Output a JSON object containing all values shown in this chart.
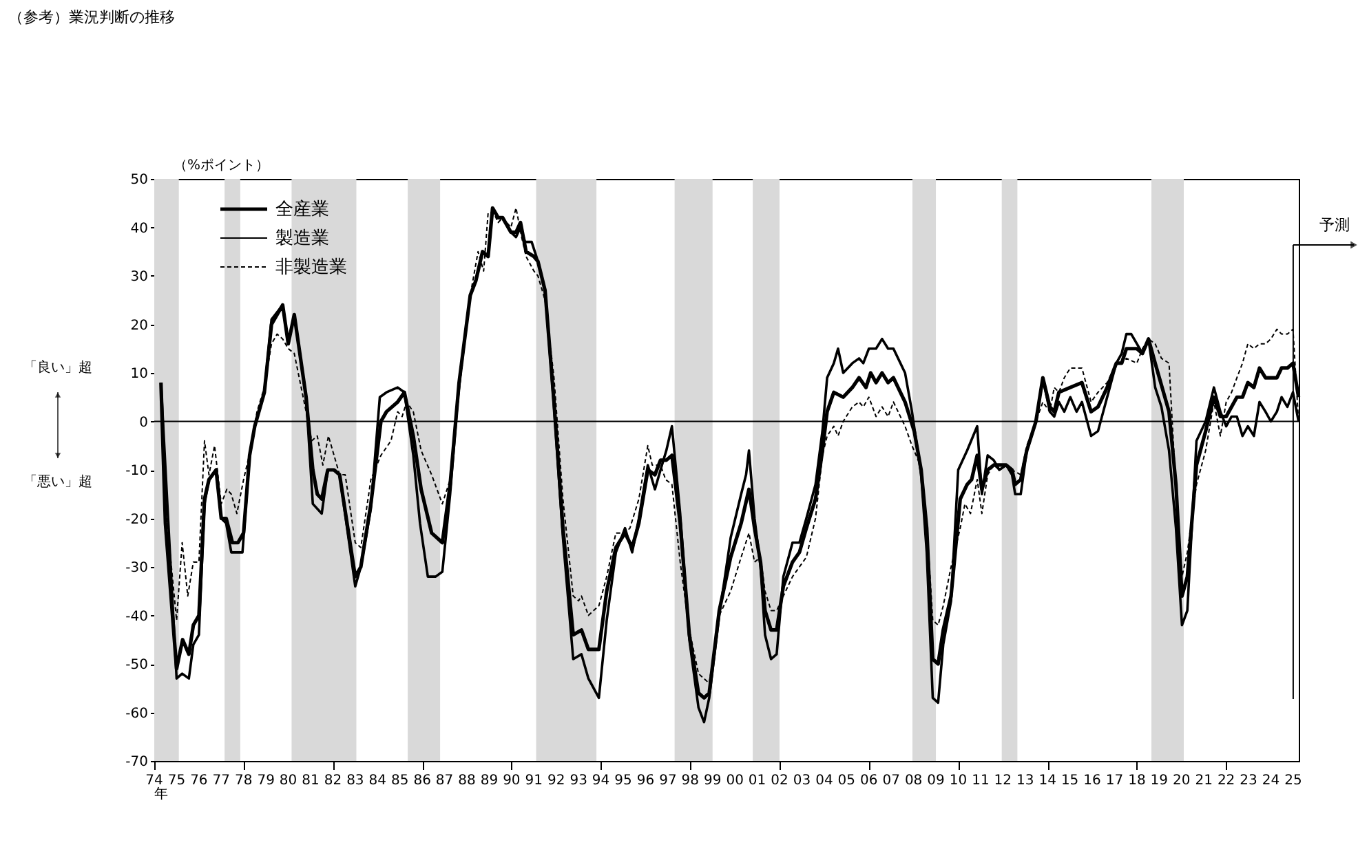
{
  "chart_data": {
    "type": "line",
    "title": "（参考）業況判断の推移",
    "ylabel": "（%ポイント）",
    "annotations": [
      "「良い」超",
      "「悪い」超",
      "年"
    ],
    "xlim": [
      1974,
      2025.25
    ],
    "ylim": [
      -70,
      50
    ],
    "yticks": [
      -70,
      -60,
      -50,
      -40,
      -30,
      -20,
      -10,
      0,
      10,
      20,
      30,
      40,
      50
    ],
    "xticks": [
      {
        "value": 1974,
        "label": "74"
      },
      {
        "value": 1975,
        "label": "75"
      },
      {
        "value": 1976,
        "label": "76"
      },
      {
        "value": 1977,
        "label": "77"
      },
      {
        "value": 1978,
        "label": "78"
      },
      {
        "value": 1979,
        "label": "79"
      },
      {
        "value": 1980,
        "label": "80"
      },
      {
        "value": 1981,
        "label": "81"
      },
      {
        "value": 1982,
        "label": "82"
      },
      {
        "value": 1983,
        "label": "83"
      },
      {
        "value": 1984,
        "label": "84"
      },
      {
        "value": 1985,
        "label": "85"
      },
      {
        "value": 1986,
        "label": "86"
      },
      {
        "value": 1987,
        "label": "87"
      },
      {
        "value": 1988,
        "label": "88"
      },
      {
        "value": 1989,
        "label": "89"
      },
      {
        "value": 1990,
        "label": "90"
      },
      {
        "value": 1991,
        "label": "91"
      },
      {
        "value": 1992,
        "label": "92"
      },
      {
        "value": 1993,
        "label": "93"
      },
      {
        "value": 1994,
        "label": "94"
      },
      {
        "value": 1995,
        "label": "95"
      },
      {
        "value": 1996,
        "label": "96"
      },
      {
        "value": 1997,
        "label": "97"
      },
      {
        "value": 1998,
        "label": "98"
      },
      {
        "value": 1999,
        "label": "99"
      },
      {
        "value": 2000,
        "label": "00"
      },
      {
        "value": 2001,
        "label": "01"
      },
      {
        "value": 2002,
        "label": "02"
      },
      {
        "value": 2003,
        "label": "03"
      },
      {
        "value": 2004,
        "label": "04"
      },
      {
        "value": 2005,
        "label": "05"
      },
      {
        "value": 2006,
        "label": "06"
      },
      {
        "value": 2007,
        "label": "07"
      },
      {
        "value": 2008,
        "label": "08"
      },
      {
        "value": 2009,
        "label": "09"
      },
      {
        "value": 2010,
        "label": "10"
      },
      {
        "value": 2011,
        "label": "11"
      },
      {
        "value": 2012,
        "label": "12"
      },
      {
        "value": 2013,
        "label": "13"
      },
      {
        "value": 2014,
        "label": "14"
      },
      {
        "value": 2015,
        "label": "15"
      },
      {
        "value": 2016,
        "label": "16"
      },
      {
        "value": 2017,
        "label": "17"
      },
      {
        "value": 2018,
        "label": "18"
      },
      {
        "value": 2019,
        "label": "19"
      },
      {
        "value": 2020,
        "label": "20"
      },
      {
        "value": 2021,
        "label": "21"
      },
      {
        "value": 2022,
        "label": "22"
      },
      {
        "value": 2023,
        "label": "23"
      },
      {
        "value": 2024,
        "label": "24"
      },
      {
        "value": 2025,
        "label": "25"
      }
    ],
    "grid": false,
    "legend": "top left",
    "ref_lines": [
      {
        "axis": "y",
        "value": 0,
        "color": "#000000"
      },
      {
        "axis": "x",
        "value": 2025,
        "label": "予測",
        "color": "#000000"
      }
    ],
    "bands": [
      {
        "axis": "x",
        "from": 1974,
        "to": 1975.1,
        "color": "#d9d9d9"
      },
      {
        "axis": "x",
        "from": 1977.15,
        "to": 1977.85,
        "color": "#d9d9d9"
      },
      {
        "axis": "x",
        "from": 1980.15,
        "to": 1983.05,
        "color": "#d9d9d9"
      },
      {
        "axis": "x",
        "from": 1985.35,
        "to": 1986.8,
        "color": "#d9d9d9"
      },
      {
        "axis": "x",
        "from": 1991.1,
        "to": 1993.8,
        "color": "#d9d9d9"
      },
      {
        "axis": "x",
        "from": 1997.3,
        "to": 1999.0,
        "color": "#d9d9d9"
      },
      {
        "axis": "x",
        "from": 2000.8,
        "to": 2002.0,
        "color": "#d9d9d9"
      },
      {
        "axis": "x",
        "from": 2007.95,
        "to": 2009.0,
        "color": "#d9d9d9"
      },
      {
        "axis": "x",
        "from": 2011.95,
        "to": 2012.65,
        "color": "#d9d9d9"
      },
      {
        "axis": "x",
        "from": 2018.65,
        "to": 2020.1,
        "color": "#d9d9d9"
      }
    ],
    "series": [
      {
        "name": "全産業",
        "color": "#000000",
        "line_style": "solid",
        "x": [
          1974.3,
          1974.5,
          1975.0,
          1975.27,
          1975.55,
          1975.75,
          1976.0,
          1976.25,
          1976.45,
          1976.77,
          1977.0,
          1977.22,
          1977.5,
          1977.75,
          1978.0,
          1978.27,
          1978.5,
          1978.93,
          1979.25,
          1979.75,
          1980.0,
          1980.27,
          1980.8,
          1981.1,
          1981.3,
          1981.5,
          1981.77,
          1982.05,
          1982.3,
          1983.0,
          1983.25,
          1983.7,
          1984.15,
          1984.4,
          1984.9,
          1985.2,
          1985.6,
          1985.95,
          1986.42,
          1986.9,
          1987.25,
          1987.65,
          1988.15,
          1988.4,
          1988.7,
          1988.95,
          1989.15,
          1989.4,
          1989.6,
          1989.97,
          1990.2,
          1990.4,
          1990.65,
          1991.0,
          1991.18,
          1991.5,
          1991.9,
          1992.3,
          1992.76,
          1993.13,
          1993.44,
          1993.91,
          1994.26,
          1994.67,
          1995.08,
          1995.4,
          1995.7,
          1996.1,
          1996.42,
          1996.67,
          1996.93,
          1997.18,
          1997.55,
          1997.96,
          1998.37,
          1998.62,
          1998.85,
          1999.3,
          1999.81,
          2000.28,
          2000.63,
          2000.88,
          2001.15,
          2001.35,
          2001.62,
          2001.87,
          2002.17,
          2002.58,
          2002.89,
          2003.2,
          2003.61,
          2003.92,
          2004.13,
          2004.43,
          2004.85,
          2005.26,
          2005.56,
          2005.87,
          2006.08,
          2006.32,
          2006.59,
          2006.86,
          2007.1,
          2007.62,
          2008.03,
          2008.34,
          2008.59,
          2008.86,
          2009.1,
          2009.33,
          2009.68,
          2010.09,
          2010.4,
          2010.6,
          2010.85,
          2011.06,
          2011.32,
          2011.59,
          2011.84,
          2012.15,
          2012.41,
          2012.55,
          2012.8,
          2013.07,
          2013.48,
          2013.79,
          2014.1,
          2014.3,
          2014.51,
          2015.02,
          2015.54,
          2015.95,
          2016.26,
          2016.67,
          2017.08,
          2017.32,
          2017.53,
          2018.0,
          2018.25,
          2018.52,
          2018.82,
          2019.44,
          2019.75,
          2020.02,
          2020.26,
          2020.67,
          2021.08,
          2021.45,
          2021.74,
          2022.0,
          2022.48,
          2022.73,
          2022.97,
          2023.24,
          2023.49,
          2023.76,
          2024.27,
          2024.48,
          2024.74,
          2024.99,
          2025.24
        ],
        "values": [
          8,
          -21,
          -51,
          -45,
          -48,
          -42,
          -40,
          -16,
          -12,
          -10,
          -20,
          -20,
          -25,
          -25,
          -23,
          -7,
          -1,
          6,
          20,
          24,
          16,
          22,
          5,
          -10,
          -15,
          -16,
          -10,
          -10,
          -11,
          -32,
          -30,
          -17,
          0,
          2,
          4,
          6,
          -3,
          -14,
          -23,
          -25,
          -13,
          8,
          26,
          29,
          35,
          34,
          44,
          42,
          42,
          39,
          39,
          41,
          35,
          34,
          33,
          27,
          4,
          -22,
          -44,
          -43,
          -47,
          -47,
          -35,
          -26,
          -23,
          -26,
          -21,
          -10,
          -11,
          -8,
          -8,
          -7,
          -21,
          -44,
          -56,
          -57,
          -56,
          -39,
          -28,
          -21,
          -14,
          -22,
          -29,
          -39,
          -43,
          -43,
          -34,
          -29,
          -27,
          -22,
          -16,
          -6,
          2,
          6,
          5,
          7,
          9,
          7,
          10,
          8,
          10,
          8,
          9,
          4,
          -2,
          -10,
          -22,
          -49,
          -50,
          -43,
          -36,
          -16,
          -13,
          -12,
          -7,
          -14,
          -10,
          -9,
          -9,
          -9,
          -10,
          -13,
          -12,
          -6,
          0,
          9,
          3,
          2,
          6,
          7,
          8,
          2,
          3,
          7,
          12,
          12,
          15,
          15,
          14,
          17,
          12,
          2,
          -13,
          -36,
          -32,
          -9,
          -2,
          5,
          1,
          1,
          5,
          5,
          8,
          7,
          11,
          9,
          9,
          11,
          11,
          12,
          5
        ]
      },
      {
        "name": "製造業",
        "color": "#000000",
        "line_style": "solid",
        "x": [
          1974.3,
          1975.0,
          1975.25,
          1975.55,
          1975.75,
          1976.0,
          1976.25,
          1976.45,
          1976.77,
          1977.0,
          1977.22,
          1977.45,
          1977.95,
          1978.27,
          1978.5,
          1978.93,
          1979.25,
          1979.75,
          1980.0,
          1980.27,
          1980.8,
          1981.1,
          1981.5,
          1981.77,
          1982.05,
          1982.3,
          1983.0,
          1983.25,
          1983.7,
          1984.1,
          1984.4,
          1984.9,
          1985.2,
          1985.6,
          1985.9,
          1986.25,
          1986.6,
          1986.9,
          1987.25,
          1987.65,
          1988.15,
          1988.4,
          1988.7,
          1988.95,
          1989.15,
          1989.4,
          1989.6,
          1989.97,
          1990.2,
          1990.4,
          1990.6,
          1990.9,
          1991.18,
          1991.5,
          1991.9,
          1992.3,
          1992.76,
          1993.13,
          1993.44,
          1993.91,
          1994.26,
          1994.67,
          1995.08,
          1995.4,
          1995.7,
          1996.1,
          1996.42,
          1996.67,
          1996.93,
          1997.18,
          1997.55,
          1997.96,
          1998.37,
          1998.62,
          1998.85,
          1999.3,
          1999.81,
          2000.28,
          2000.5,
          2000.63,
          2000.88,
          2001.15,
          2001.35,
          2001.62,
          2001.87,
          2002.17,
          2002.58,
          2002.89,
          2003.2,
          2003.61,
          2003.92,
          2004.13,
          2004.43,
          2004.62,
          2004.85,
          2005.26,
          2005.56,
          2005.75,
          2006.0,
          2006.32,
          2006.59,
          2006.86,
          2007.1,
          2007.62,
          2007.93,
          2008.34,
          2008.59,
          2008.86,
          2009.1,
          2009.33,
          2009.68,
          2010.0,
          2010.4,
          2010.85,
          2011.06,
          2011.32,
          2011.59,
          2011.84,
          2012.15,
          2012.41,
          2012.55,
          2012.8,
          2013.07,
          2013.48,
          2013.79,
          2014.1,
          2014.3,
          2014.51,
          2014.75,
          2015.02,
          2015.3,
          2015.54,
          2015.95,
          2016.26,
          2016.67,
          2017.08,
          2017.32,
          2017.53,
          2017.75,
          2018.0,
          2018.25,
          2018.52,
          2018.82,
          2019.1,
          2019.44,
          2019.75,
          2020.02,
          2020.26,
          2020.67,
          2021.08,
          2021.45,
          2021.74,
          2022.0,
          2022.24,
          2022.48,
          2022.73,
          2022.97,
          2023.24,
          2023.49,
          2023.76,
          2024.0,
          2024.27,
          2024.48,
          2024.74,
          2024.99,
          2025.24
        ],
        "values": [
          8,
          -53,
          -52,
          -53,
          -46,
          -44,
          -17,
          -12,
          -10,
          -20,
          -21,
          -27,
          -27,
          -7,
          -1,
          6,
          21,
          24,
          16,
          22,
          5,
          -17,
          -19,
          -10,
          -10,
          -11,
          -34,
          -30,
          -18,
          5,
          6,
          7,
          6,
          -7,
          -21,
          -32,
          -32,
          -31,
          -15,
          8,
          26,
          29,
          35,
          34,
          44,
          42,
          42,
          39,
          38,
          40,
          37,
          37,
          33,
          27,
          3,
          -24,
          -49,
          -48,
          -53,
          -57,
          -41,
          -27,
          -22,
          -27,
          -20,
          -9,
          -14,
          -10,
          -6,
          -1,
          -19,
          -45,
          -59,
          -62,
          -57,
          -40,
          -24,
          -15,
          -11,
          -6,
          -20,
          -30,
          -44,
          -49,
          -48,
          -32,
          -25,
          -25,
          -20,
          -13,
          -2,
          9,
          12,
          15,
          10,
          12,
          13,
          12,
          15,
          15,
          17,
          15,
          15,
          10,
          2,
          -11,
          -27,
          -57,
          -58,
          -46,
          -37,
          -10,
          -6,
          -1,
          -15,
          -7,
          -8,
          -10,
          -9,
          -11,
          -15,
          -15,
          -6,
          0,
          9,
          2,
          1,
          4,
          2,
          5,
          2,
          4,
          -3,
          -2,
          5,
          12,
          14,
          18,
          18,
          16,
          14,
          17,
          7,
          3,
          -6,
          -22,
          -42,
          -39,
          -4,
          0,
          7,
          2,
          -1,
          1,
          1,
          -3,
          -1,
          -3,
          4,
          2,
          0,
          2,
          5,
          3,
          6,
          0
        ]
      },
      {
        "name": "非製造業",
        "color": "#000000",
        "line_style": "dashed",
        "x": [
          1974.3,
          1974.6,
          1975.0,
          1975.25,
          1975.5,
          1975.75,
          1976.0,
          1976.25,
          1976.45,
          1976.7,
          1977.0,
          1977.25,
          1977.45,
          1977.7,
          1978.0,
          1978.3,
          1978.6,
          1978.93,
          1979.25,
          1979.5,
          1979.75,
          1980.0,
          1980.27,
          1980.8,
          1981.05,
          1981.3,
          1981.55,
          1981.8,
          1982.05,
          1982.3,
          1982.55,
          1983.0,
          1983.25,
          1983.7,
          1984.15,
          1984.6,
          1984.9,
          1985.1,
          1985.3,
          1985.6,
          1985.95,
          1986.42,
          1986.9,
          1987.25,
          1987.65,
          1988.15,
          1988.5,
          1988.75,
          1988.95,
          1989.2,
          1989.4,
          1989.6,
          1989.97,
          1990.2,
          1990.45,
          1990.65,
          1991.0,
          1991.18,
          1991.5,
          1991.9,
          1992.3,
          1992.76,
          1993.0,
          1993.13,
          1993.44,
          1993.91,
          1994.26,
          1994.67,
          1995.08,
          1995.3,
          1995.7,
          1996.1,
          1996.3,
          1996.67,
          1996.9,
          1997.18,
          1997.55,
          1997.96,
          1998.37,
          1998.85,
          1999.3,
          1999.81,
          2000.28,
          2000.63,
          2000.88,
          2001.15,
          2001.35,
          2001.62,
          2001.87,
          2002.17,
          2002.58,
          2002.89,
          2003.2,
          2003.61,
          2003.92,
          2004.13,
          2004.43,
          2004.62,
          2004.85,
          2005.26,
          2005.56,
          2005.75,
          2006.0,
          2006.32,
          2006.59,
          2006.86,
          2007.1,
          2007.62,
          2007.93,
          2008.3,
          2008.59,
          2008.86,
          2009.1,
          2009.33,
          2009.68,
          2010.09,
          2010.3,
          2010.55,
          2010.85,
          2011.06,
          2011.32,
          2011.59,
          2011.84,
          2012.15,
          2012.41,
          2012.8,
          2013.07,
          2013.48,
          2013.79,
          2014.1,
          2014.3,
          2014.51,
          2014.75,
          2015.02,
          2015.54,
          2015.95,
          2016.26,
          2016.67,
          2017.08,
          2017.32,
          2017.53,
          2018.0,
          2018.25,
          2018.52,
          2018.82,
          2019.1,
          2019.44,
          2019.75,
          2020.02,
          2020.26,
          2020.67,
          2021.08,
          2021.45,
          2021.74,
          2022.0,
          2022.24,
          2022.48,
          2022.73,
          2022.97,
          2023.24,
          2023.49,
          2023.76,
          2024.0,
          2024.27,
          2024.48,
          2024.74,
          2024.99,
          2025.24
        ],
        "values": [
          7,
          -22,
          -41,
          -25,
          -36,
          -29,
          -29,
          -4,
          -11,
          -5,
          -17,
          -14,
          -15,
          -19,
          -12,
          -6,
          2,
          7,
          16,
          18,
          17,
          15,
          14,
          2,
          -4,
          -3,
          -9,
          -3,
          -7,
          -11,
          -11,
          -25,
          -26,
          -12,
          -7,
          -4,
          2,
          1,
          4,
          2,
          -6,
          -11,
          -17,
          -12,
          6,
          26,
          35,
          31,
          43,
          43,
          41,
          42,
          40,
          44,
          38,
          34,
          31,
          30,
          25,
          9,
          -16,
          -36,
          -37,
          -36,
          -40,
          -38,
          -32,
          -23,
          -23,
          -22,
          -16,
          -5,
          -9,
          -9,
          -12,
          -13,
          -29,
          -43,
          -52,
          -54,
          -40,
          -35,
          -28,
          -23,
          -29,
          -28,
          -35,
          -39,
          -39,
          -36,
          -32,
          -30,
          -28,
          -20,
          -7,
          -3,
          -1,
          -3,
          0,
          3,
          4,
          3,
          5,
          1,
          3,
          1,
          4,
          -1,
          -5,
          -9,
          -21,
          -41,
          -42,
          -38,
          -30,
          -22,
          -17,
          -19,
          -12,
          -19,
          -11,
          -9,
          -10,
          -9,
          -10,
          -11,
          -5,
          0,
          4,
          2,
          7,
          6,
          9,
          11,
          11,
          4,
          6,
          8,
          12,
          12,
          13,
          12,
          15,
          17,
          16,
          13,
          12,
          -14,
          -32,
          -27,
          -13,
          -6,
          4,
          -3,
          4,
          6,
          9,
          12,
          16,
          15,
          16,
          16,
          17,
          19,
          18,
          18,
          19,
          0
        ]
      }
    ]
  }
}
